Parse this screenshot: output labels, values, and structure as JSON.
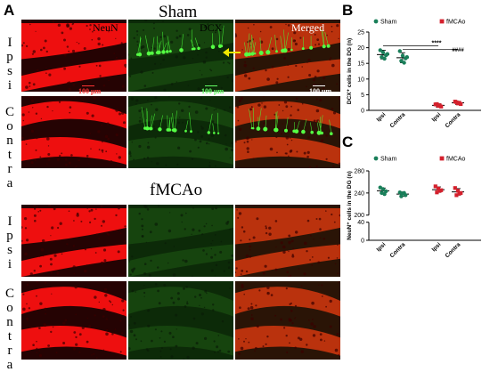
{
  "figure": {
    "panel_a_letter": "A",
    "panel_b_letter": "B",
    "panel_c_letter": "C",
    "sham_title": "Sham",
    "fmcao_title": "fMCAo",
    "rows": [
      {
        "label": "Ipsi",
        "letters": [
          "I",
          "p",
          "s",
          "i"
        ]
      },
      {
        "label": "Contra",
        "letters": [
          "C",
          "o",
          "n",
          "t",
          "r",
          "a"
        ]
      },
      {
        "label": "Ipsi",
        "letters": [
          "I",
          "p",
          "s",
          "i"
        ]
      },
      {
        "label": "Contra",
        "letters": [
          "C",
          "o",
          "n",
          "t",
          "r",
          "a"
        ]
      }
    ],
    "channels": {
      "neun": "NeuN",
      "dcx": "DCX",
      "merged": "Merged"
    },
    "scalebar": "100 μm",
    "colors": {
      "neun": "#ff1a1a",
      "dcx": "#2bd42b",
      "sham": "#1a7f5a",
      "fmcao": "#d4202c",
      "arrow": "#f2e600"
    }
  },
  "chart_data": [
    {
      "type": "scatter",
      "panel": "B",
      "ylabel": "DCX⁺ cells in the DG (n)",
      "ylim": [
        0,
        25
      ],
      "yticks": [
        0,
        5,
        10,
        15,
        20,
        25
      ],
      "categories": [
        "Ipsi",
        "Contra",
        "Ipsi",
        "Contra"
      ],
      "legend": [
        "Sham",
        "fMCAo"
      ],
      "series": [
        {
          "name": "Sham",
          "color": "#1a7f5a",
          "groups": [
            {
              "category": "Ipsi",
              "mean": 17.8,
              "sd": 1.4,
              "points": [
                19.2,
                18.5,
                17.6,
                17.0,
                16.5,
                18.0
              ]
            },
            {
              "category": "Contra",
              "mean": 16.8,
              "sd": 1.6,
              "points": [
                18.9,
                17.5,
                16.6,
                15.8,
                15.2,
                17.0
              ]
            }
          ]
        },
        {
          "name": "fMCAo",
          "color": "#d4202c",
          "groups": [
            {
              "category": "Ipsi",
              "mean": 1.6,
              "sd": 0.5,
              "points": [
                1.9,
                1.4,
                1.2,
                2.0,
                1.6
              ]
            },
            {
              "category": "Contra",
              "mean": 2.4,
              "sd": 0.5,
              "points": [
                2.8,
                2.2,
                2.0,
                2.6,
                2.4
              ]
            }
          ]
        }
      ],
      "annotations": [
        "****",
        "####"
      ]
    },
    {
      "type": "scatter",
      "panel": "C",
      "ylabel": "NeuN⁺ cells in the DG (n)",
      "ylim": [
        0,
        280
      ],
      "yticks": [
        0,
        40,
        200,
        240,
        280
      ],
      "axis_break": [
        40,
        200
      ],
      "categories": [
        "Ipsi",
        "Contra",
        "Ipsi",
        "Contra"
      ],
      "legend": [
        "Sham",
        "fMCAo"
      ],
      "series": [
        {
          "name": "Sham",
          "color": "#1a7f5a",
          "groups": [
            {
              "category": "Ipsi",
              "mean": 244,
              "sd": 5,
              "points": [
                250,
                247,
                243,
                240,
                238
              ]
            },
            {
              "category": "Contra",
              "mean": 238,
              "sd": 4,
              "points": [
                241,
                239,
                236,
                234,
                240
              ]
            }
          ]
        },
        {
          "name": "fMCAo",
          "color": "#d4202c",
          "groups": [
            {
              "category": "Ipsi",
              "mean": 246,
              "sd": 5,
              "points": [
                252,
                248,
                245,
                241,
                244
              ]
            },
            {
              "category": "Contra",
              "mean": 242,
              "sd": 6,
              "points": [
                249,
                244,
                240,
                236,
                239
              ]
            }
          ]
        }
      ],
      "annotations": []
    }
  ]
}
